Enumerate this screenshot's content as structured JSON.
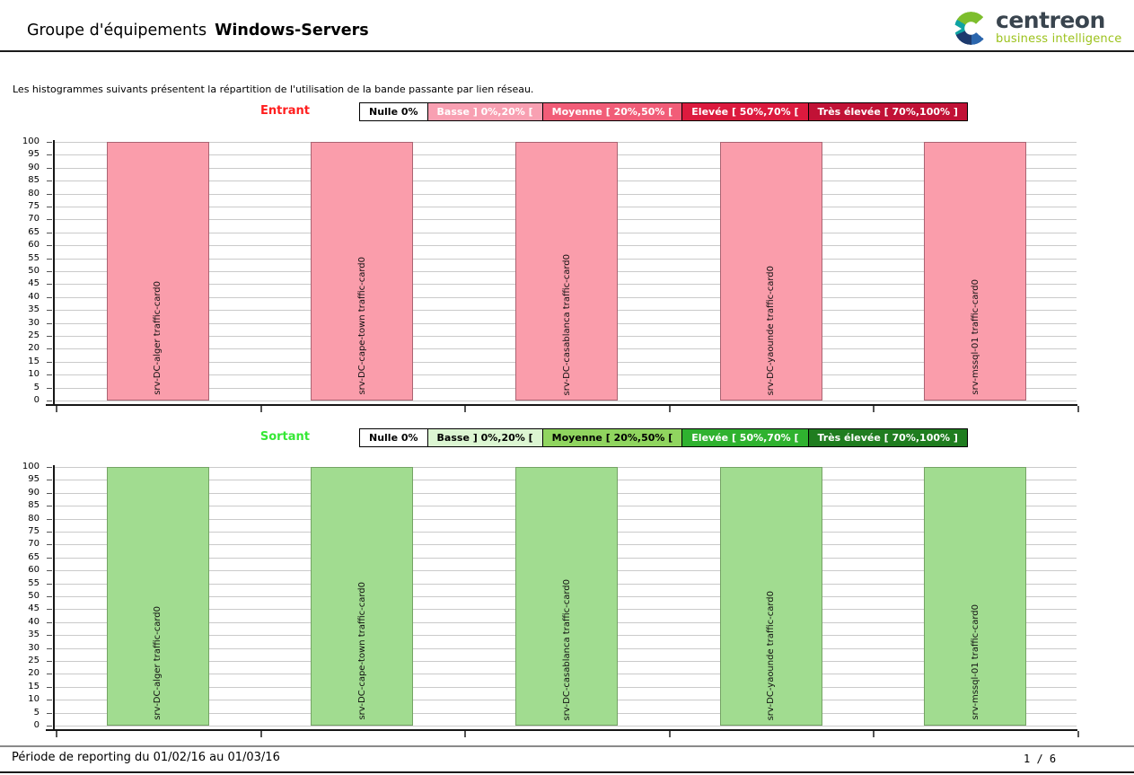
{
  "header": {
    "title_prefix": "Groupe d'équipements",
    "title_name": "Windows-Servers",
    "logo": {
      "brand": "centreon",
      "tagline": "business intelligence"
    }
  },
  "intro_text": "Les histogrammes suivants présentent la répartition de l'utilisation de la bande passante par lien réseau.",
  "chart_data": [
    {
      "type": "bar",
      "title": "Entrant",
      "title_color": "#ff1e1e",
      "series_label": "Basse ] 0%,20% [",
      "categories": [
        "srv-DC-alger traffic-card0",
        "srv-DC-cape-town traffic-card0",
        "srv-DC-casablanca traffic-card0",
        "srv-DC-yaounde traffic-card0",
        "srv-mssql-01 traffic-card0"
      ],
      "values": [
        100,
        100,
        100,
        100,
        100
      ],
      "xlabel": "",
      "ylabel": "",
      "ylim": [
        0,
        100
      ],
      "ytick_step": 5,
      "grid": true,
      "legend_position": "top",
      "bar_fill": "#fa9dab",
      "bar_border": "#aa6472",
      "legend": [
        {
          "label": "Nulle 0%",
          "bg": "#ffffff",
          "fg": "#000000"
        },
        {
          "label": "Basse ] 0%,20% [",
          "bg": "#f8a0b2",
          "fg": "#ffffff"
        },
        {
          "label": "Moyenne [ 20%,50% [",
          "bg": "#f15d78",
          "fg": "#ffffff"
        },
        {
          "label": "Elevée [ 50%,70% [",
          "bg": "#dc1a3e",
          "fg": "#ffffff"
        },
        {
          "label": "Très élevée [ 70%,100% ]",
          "bg": "#c11236",
          "fg": "#ffffff"
        }
      ]
    },
    {
      "type": "bar",
      "title": "Sortant",
      "title_color": "#35e835",
      "series_label": "Basse ] 0%,20% [",
      "categories": [
        "srv-DC-alger traffic-card0",
        "srv-DC-cape-town traffic-card0",
        "srv-DC-casablanca traffic-card0",
        "srv-DC-yaounde traffic-card0",
        "srv-mssql-01 traffic-card0"
      ],
      "values": [
        100,
        100,
        100,
        100,
        100
      ],
      "xlabel": "",
      "ylabel": "",
      "ylim": [
        0,
        100
      ],
      "ytick_step": 5,
      "grid": true,
      "legend_position": "top",
      "bar_fill": "#a1dc90",
      "bar_border": "#74a364",
      "legend": [
        {
          "label": "Nulle 0%",
          "bg": "#ffffff",
          "fg": "#000000"
        },
        {
          "label": "Basse ] 0%,20% [",
          "bg": "#dcf6d2",
          "fg": "#000000"
        },
        {
          "label": "Moyenne [ 20%,50% [",
          "bg": "#90d55f",
          "fg": "#000000"
        },
        {
          "label": "Elevée [ 50%,70% [",
          "bg": "#2fb22f",
          "fg": "#ffffff"
        },
        {
          "label": "Très élevée [ 70%,100% ]",
          "bg": "#1f7d1f",
          "fg": "#ffffff"
        }
      ]
    }
  ],
  "footer": {
    "period": "Période de reporting du 01/02/16 au 01/03/16",
    "page": "1 / 6"
  }
}
